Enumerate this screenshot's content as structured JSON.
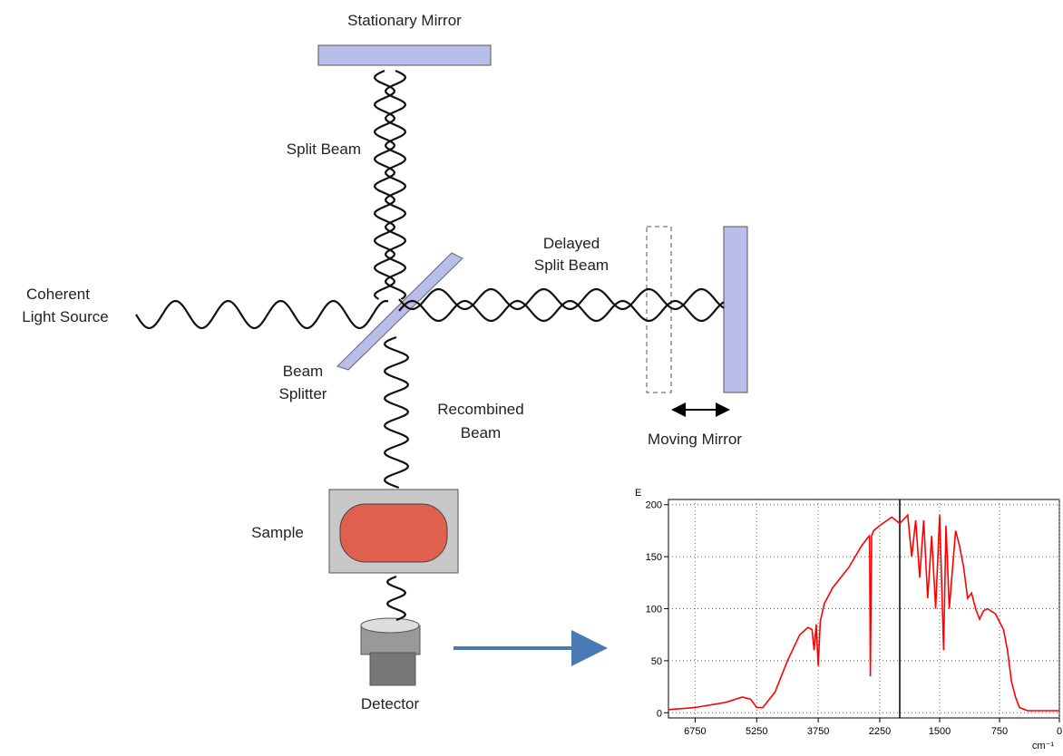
{
  "labels": {
    "stationary_mirror": "Stationary Mirror",
    "split_beam": "Split Beam",
    "delayed_split_beam": [
      "Delayed",
      "Split Beam"
    ],
    "light_source": [
      "Coherent",
      "Light Source"
    ],
    "beam_splitter": [
      "Beam",
      "Splitter"
    ],
    "recombined_beam": [
      "Recombined",
      "Beam"
    ],
    "moving_mirror": "Moving Mirror",
    "sample": "Sample",
    "detector": "Detector"
  },
  "chart_data": {
    "type": "line",
    "ylabel": "E",
    "xlabel": "cm⁻¹",
    "xlim": [
      7400,
      0
    ],
    "xbreak": 2250,
    "ylim": [
      -5,
      205
    ],
    "xticks": [
      6750,
      5250,
      3750,
      2250,
      1500,
      750,
      0
    ],
    "yticks": [
      0,
      50,
      100,
      150,
      200
    ],
    "grid": true,
    "vline": 2000,
    "series": [
      {
        "color": "#ff0000",
        "x": [
          7400,
          6750,
          6000,
          5600,
          5400,
          5250,
          5100,
          4800,
          4500,
          4200,
          4000,
          3900,
          3850,
          3800,
          3750,
          3700,
          3600,
          3400,
          3000,
          2700,
          2550,
          2500,
          2480,
          2450,
          2400,
          2250,
          2100,
          2000,
          1900,
          1850,
          1800,
          1750,
          1700,
          1650,
          1600,
          1550,
          1500,
          1450,
          1420,
          1380,
          1300,
          1250,
          1200,
          1150,
          1100,
          1050,
          1000,
          950,
          900,
          800,
          700,
          650,
          600,
          550,
          500,
          400,
          0
        ],
        "values": [
          3,
          5,
          10,
          15,
          13,
          5,
          5,
          20,
          50,
          75,
          82,
          80,
          60,
          85,
          45,
          88,
          105,
          120,
          140,
          160,
          168,
          170,
          35,
          170,
          175,
          180,
          188,
          182,
          190,
          150,
          185,
          130,
          185,
          110,
          170,
          100,
          190,
          60,
          180,
          100,
          175,
          160,
          140,
          110,
          115,
          100,
          90,
          98,
          100,
          95,
          80,
          60,
          30,
          15,
          5,
          2,
          2
        ]
      }
    ]
  }
}
